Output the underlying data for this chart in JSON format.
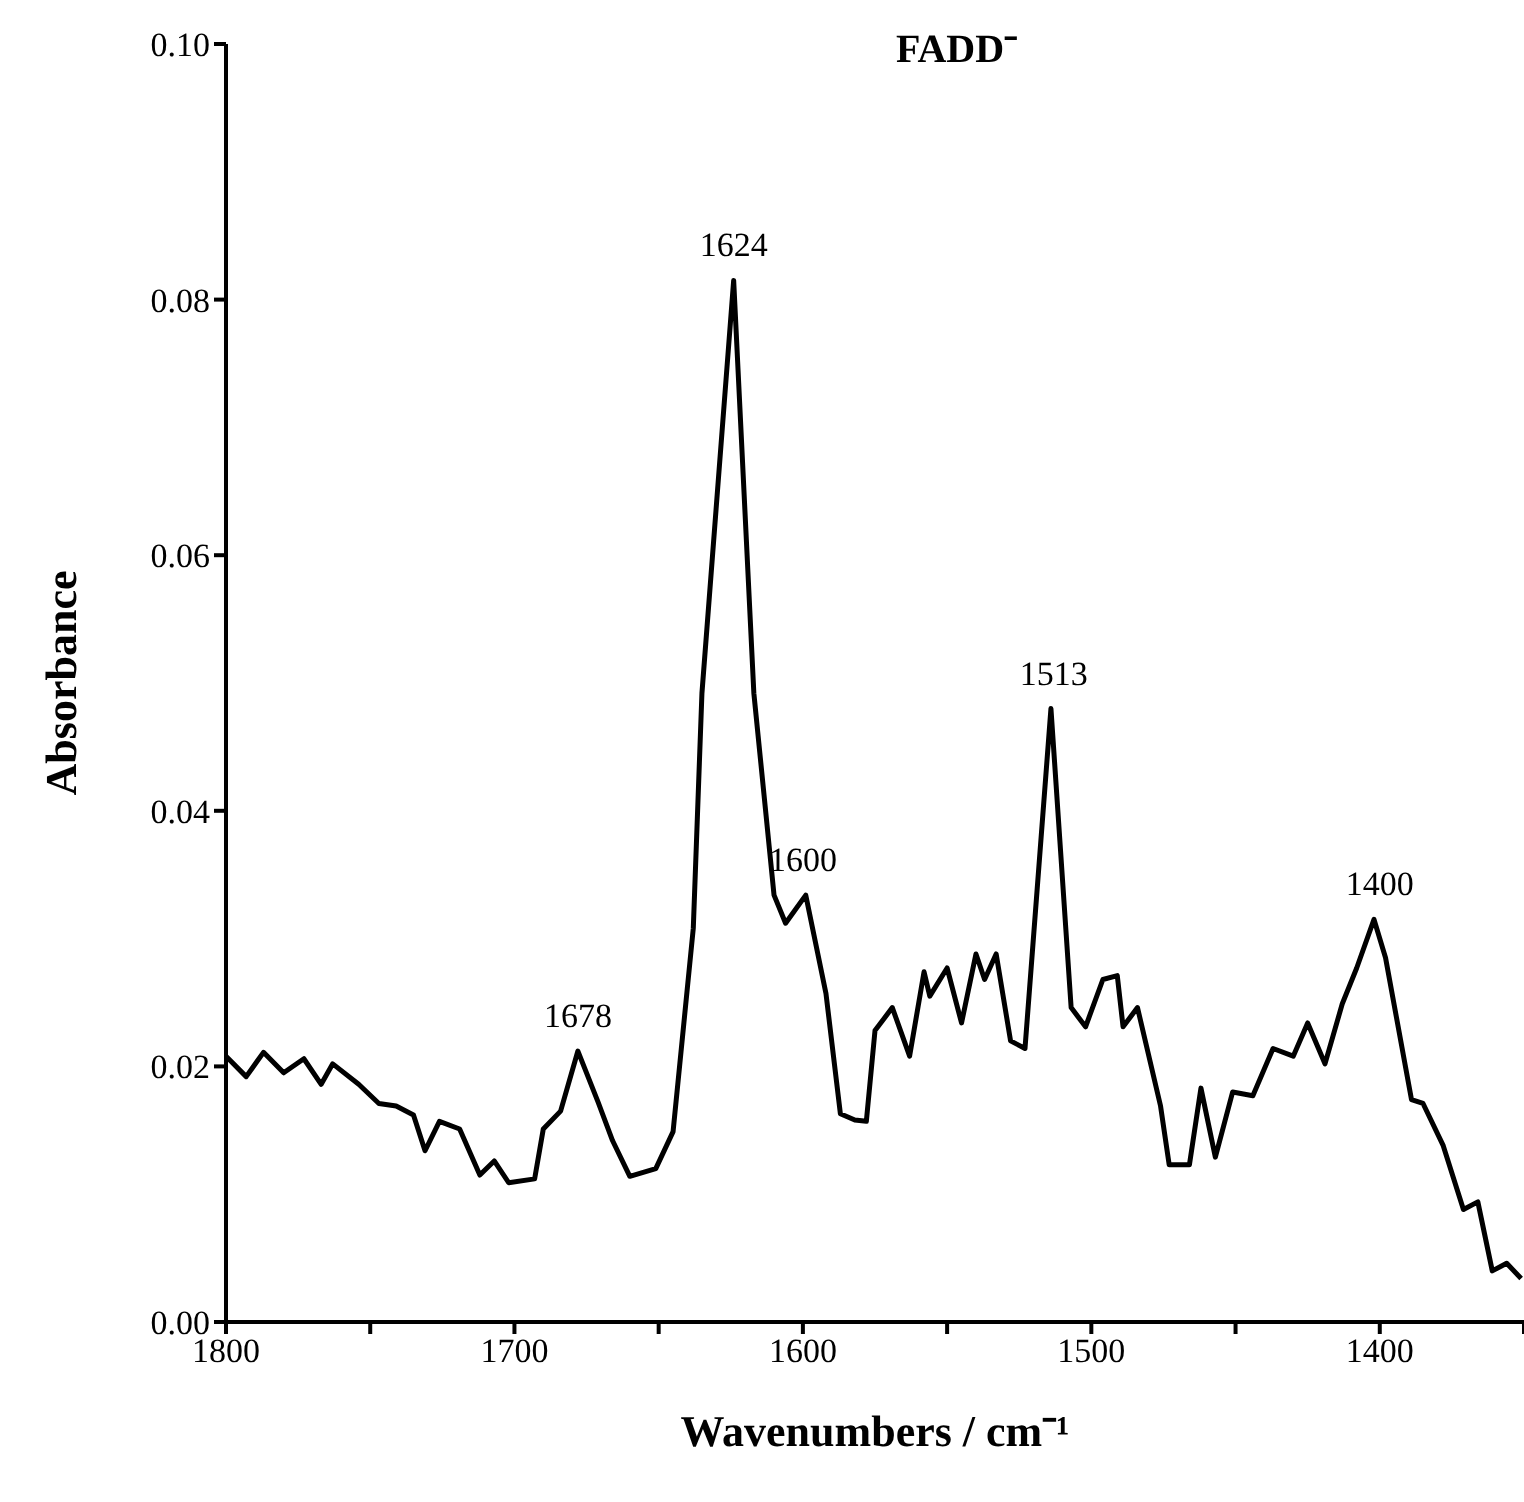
{
  "chart_data": {
    "type": "line",
    "title": "FADD⁻",
    "xlabel": "Wavenumbers / cm⁻¹",
    "ylabel": "Absorbance",
    "xlim": [
      1800,
      1350
    ],
    "xticks": [
      1800,
      {
        "value": 1750,
        "label": null
      },
      1700,
      {
        "value": 1650,
        "label": null
      },
      1600,
      {
        "value": 1550,
        "label": null
      },
      1500,
      {
        "value": 1450,
        "label": null
      },
      1400,
      {
        "value": 1350,
        "label": null
      }
    ],
    "ylim": [
      0,
      0.1
    ],
    "yticks": [
      {
        "value": 0,
        "label": "0.00"
      },
      {
        "value": 0.02,
        "label": "0.02"
      },
      {
        "value": 0.04,
        "label": "0.04"
      },
      {
        "value": 0.06,
        "label": "0.06"
      },
      {
        "value": 0.08,
        "label": "0.08"
      },
      {
        "value": 0.1,
        "label": "0.10"
      }
    ],
    "grid": false,
    "legend": false,
    "marker": "none",
    "line_style": "solid",
    "annotations": [
      {
        "text": "1678",
        "x": 1678,
        "y": 0.0212
      },
      {
        "text": "1624",
        "x": 1624,
        "y": 0.0815
      },
      {
        "text": "1600",
        "x": 1600,
        "y": 0.0334
      },
      {
        "text": "1513",
        "x": 1513,
        "y": 0.048
      },
      {
        "text": "1400",
        "x": 1400,
        "y": 0.0315
      }
    ],
    "series": [
      {
        "color": "#000000",
        "x": [
          1800,
          1793,
          1787,
          1780,
          1773,
          1767,
          1763,
          1754,
          1747,
          1741,
          1735,
          1731,
          1726,
          1719,
          1712,
          1707,
          1702,
          1693,
          1690,
          1684,
          1678,
          1671,
          1666,
          1660,
          1651,
          1645,
          1638,
          1635,
          1624,
          1617,
          1610,
          1606,
          1599,
          1592,
          1587,
          1582,
          1578,
          1575,
          1569,
          1563,
          1558,
          1556,
          1550,
          1545,
          1540,
          1537,
          1533,
          1528,
          1523,
          1514,
          1507,
          1502,
          1496,
          1491,
          1489,
          1484,
          1476,
          1473,
          1466,
          1462,
          1457,
          1451,
          1444,
          1437,
          1430,
          1425,
          1419,
          1413,
          1408,
          1402,
          1398,
          1389,
          1385,
          1378,
          1371,
          1366,
          1361,
          1356,
          1351
        ],
        "values": [
          0.0208,
          0.0192,
          0.0211,
          0.0195,
          0.0206,
          0.0186,
          0.0202,
          0.0186,
          0.0171,
          0.0169,
          0.0162,
          0.0134,
          0.0157,
          0.0151,
          0.0115,
          0.0126,
          0.0109,
          0.0112,
          0.0151,
          0.0165,
          0.0212,
          0.0172,
          0.0142,
          0.0114,
          0.012,
          0.0149,
          0.0308,
          0.0492,
          0.0815,
          0.0492,
          0.0334,
          0.0312,
          0.0334,
          0.0257,
          0.0163,
          0.0158,
          0.0157,
          0.0228,
          0.0246,
          0.0208,
          0.0274,
          0.0255,
          0.0277,
          0.0234,
          0.0288,
          0.0268,
          0.0288,
          0.022,
          0.0214,
          0.048,
          0.0246,
          0.0231,
          0.0268,
          0.0271,
          0.0231,
          0.0246,
          0.0169,
          0.0123,
          0.0123,
          0.0183,
          0.0129,
          0.018,
          0.0177,
          0.0214,
          0.0208,
          0.0234,
          0.0202,
          0.0249,
          0.0277,
          0.0315,
          0.0285,
          0.0174,
          0.0171,
          0.0138,
          0.0088,
          0.0094,
          0.004,
          0.0046,
          0.0034
        ]
      }
    ]
  }
}
